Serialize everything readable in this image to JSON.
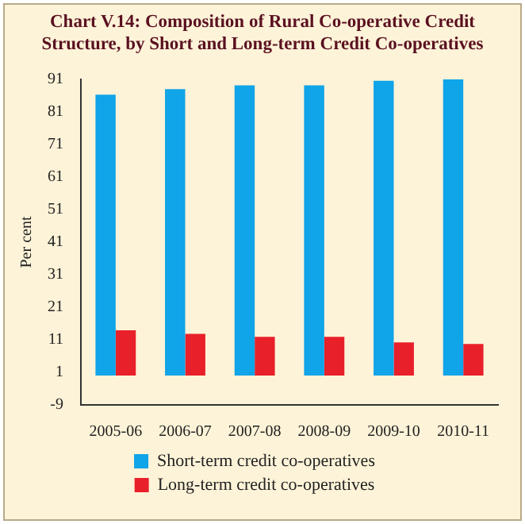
{
  "chart_data": {
    "type": "bar",
    "title": "Chart V.14: Composition of Rural Co-operative Credit Structure, by Short and Long-term Credit Co-operatives",
    "ylabel": "Per cent",
    "categories": [
      "2005-06",
      "2006-07",
      "2007-08",
      "2008-09",
      "2009-10",
      "2010-11"
    ],
    "series": [
      {
        "name": "Short-term credit co-operatives",
        "color": "#10a4e8",
        "values": [
          86.3,
          88,
          89.2,
          89.2,
          90.6,
          91
        ]
      },
      {
        "name": "Long-term credit co-operatives",
        "color": "#e8202a",
        "values": [
          13.9,
          12.8,
          11.9,
          11.9,
          10.2,
          9.7
        ]
      }
    ],
    "ylim": [
      -9,
      91
    ],
    "yticks": [
      -9,
      1,
      11,
      21,
      31,
      41,
      51,
      61,
      71,
      81,
      91
    ],
    "grid": false,
    "legend": "bottom"
  }
}
